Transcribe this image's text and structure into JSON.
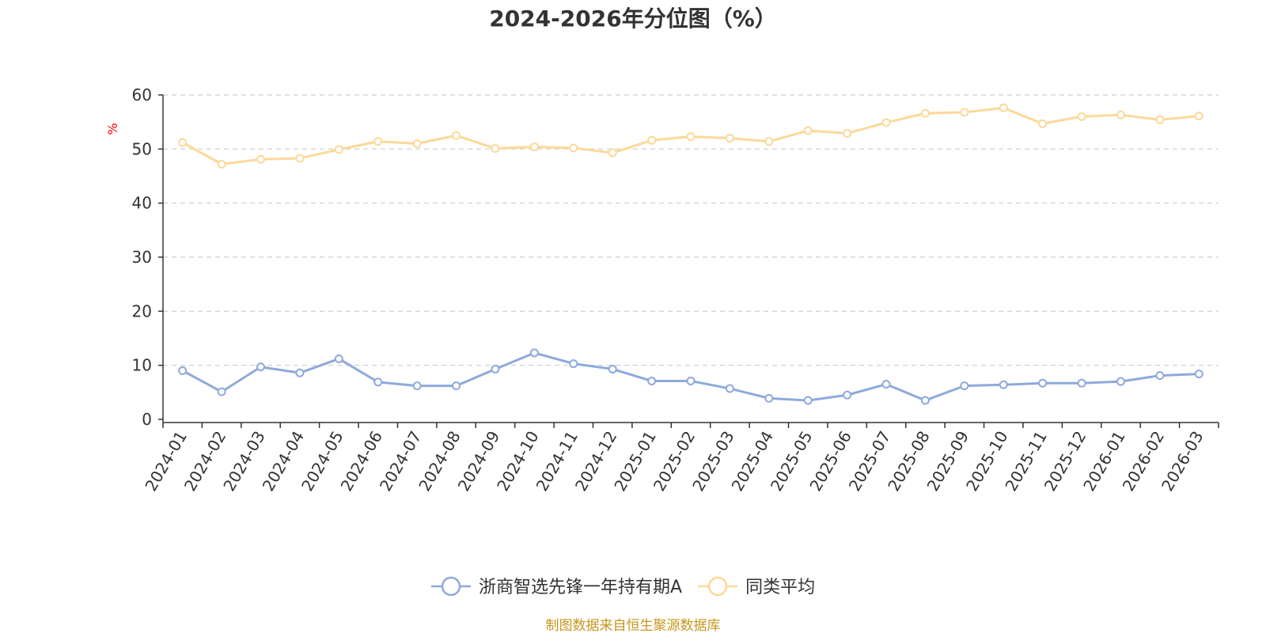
{
  "chart_data": {
    "type": "line",
    "title": "2024-2026年分位图（%）",
    "ylabel": "%",
    "xlabel": "",
    "ylim": [
      0,
      60
    ],
    "yticks": [
      0,
      10,
      20,
      30,
      40,
      50,
      60
    ],
    "grid": true,
    "legend_position": "bottom-center",
    "categories": [
      "2024-01",
      "2024-02",
      "2024-03",
      "2024-04",
      "2024-05",
      "2024-06",
      "2024-07",
      "2024-08",
      "2024-09",
      "2024-10",
      "2024-11",
      "2024-12",
      "2025-01",
      "2025-02",
      "2025-03",
      "2025-04",
      "2025-05",
      "2025-06",
      "2025-07",
      "2025-08",
      "2025-09",
      "2025-10",
      "2025-11",
      "2025-12",
      "2026-01",
      "2026-02",
      "2026-03"
    ],
    "series": [
      {
        "name": "浙商智选先锋一年持有期A",
        "color": "#8eaadb",
        "values": [
          9.0,
          5.1,
          9.7,
          8.6,
          11.2,
          6.9,
          6.2,
          6.2,
          9.3,
          12.3,
          10.3,
          9.3,
          7.1,
          7.1,
          5.7,
          3.9,
          3.5,
          4.5,
          6.5,
          3.5,
          6.2,
          6.4,
          6.7,
          6.7,
          7.0,
          8.1,
          8.4
        ]
      },
      {
        "name": "同类平均",
        "color": "#fcd999",
        "values": [
          51.2,
          47.2,
          48.1,
          48.3,
          49.9,
          51.4,
          51.0,
          52.5,
          50.1,
          50.4,
          50.2,
          49.3,
          51.6,
          52.3,
          52.0,
          51.4,
          53.4,
          52.9,
          54.9,
          56.6,
          56.8,
          57.6,
          54.7,
          56.0,
          56.3,
          55.4,
          56.1
        ]
      }
    ]
  },
  "source_text": "制图数据来自恒生聚源数据库",
  "source_color": "#c8961e",
  "ylabel_color": "#ff0000"
}
